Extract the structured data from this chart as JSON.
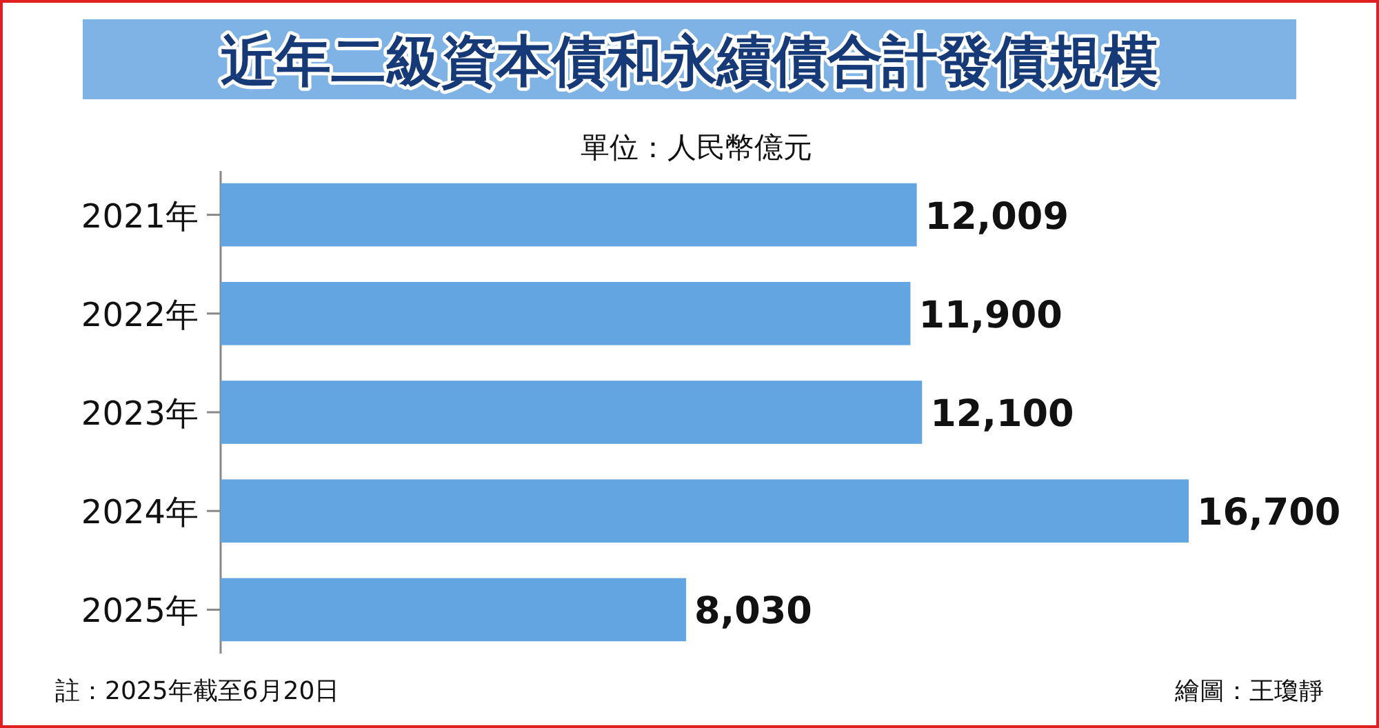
{
  "chart_data": {
    "type": "bar",
    "orientation": "horizontal",
    "title": "近年二級資本債和永續債合計發債規模",
    "subtitle": "單位：人民幣億元",
    "categories": [
      "2021年",
      "2022年",
      "2023年",
      "2024年",
      "2025年"
    ],
    "values": [
      12009,
      11900,
      12100,
      16700,
      8030
    ],
    "value_labels": [
      "12,009",
      "11,900",
      "12,100",
      "16,700",
      "8,030"
    ],
    "color": "#62a5e0",
    "annotations": [
      "註：2025年截至6月20日",
      "繪圖：王瓊靜"
    ]
  }
}
